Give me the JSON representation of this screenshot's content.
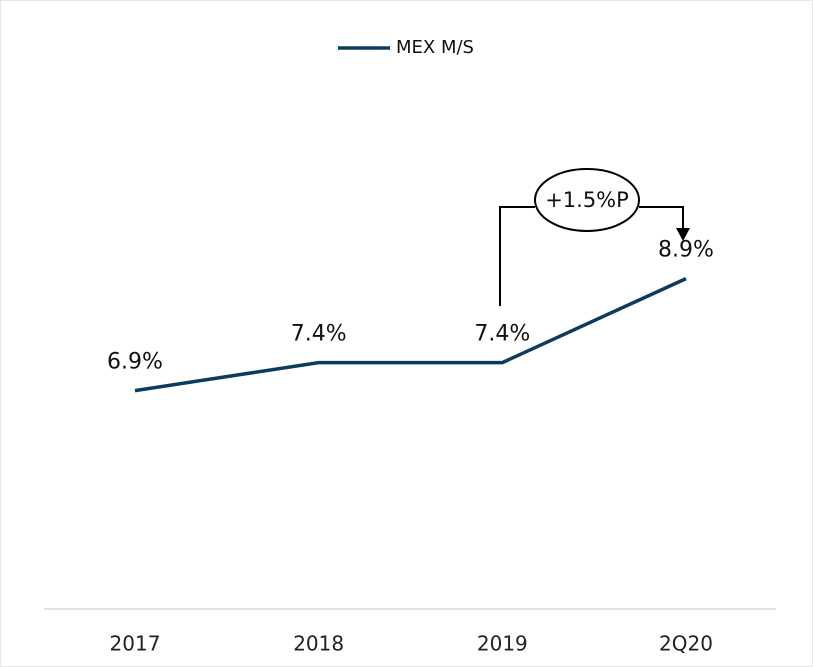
{
  "chart_data": {
    "type": "line",
    "categories": [
      "2017",
      "2018",
      "2019",
      "2Q20"
    ],
    "series": [
      {
        "name": "MEX M/S",
        "color": "#0d3b5e",
        "values": [
          6.9,
          7.4,
          7.4,
          8.9
        ],
        "value_labels": [
          "6.9%",
          "7.4%",
          "7.4%",
          "8.9%"
        ]
      }
    ],
    "ylim": [
      3,
      13
    ],
    "annotation": "+1.5%P",
    "legend": "top"
  }
}
